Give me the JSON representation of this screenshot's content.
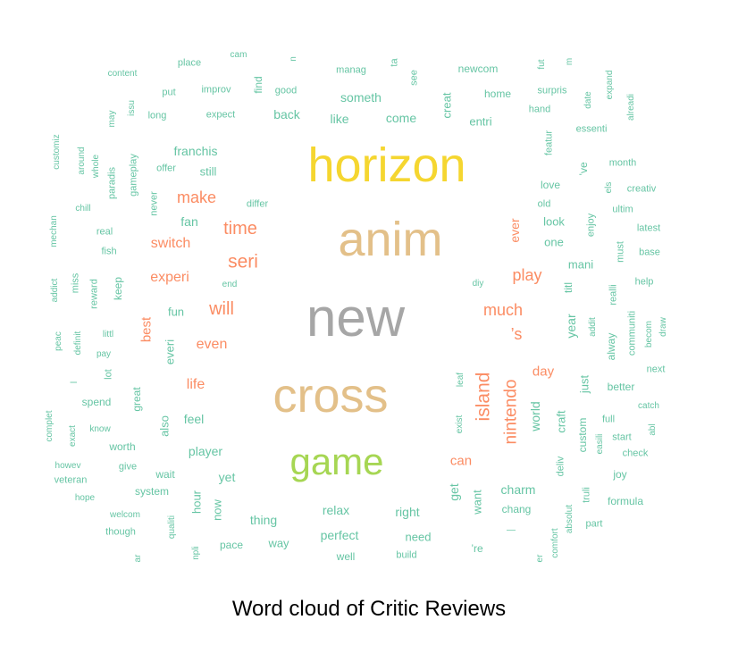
{
  "caption": "Word cloud of Critic Reviews",
  "colors": {
    "yellow": "#f5d630",
    "tan": "#e3c089",
    "gray": "#a6a6a6",
    "green": "#a6d653",
    "orange": "#fb8c63",
    "teal": "#66c5a4"
  },
  "words": [
    {
      "t": "horizon",
      "c": "yellow"
    },
    {
      "t": "anim",
      "c": "tan"
    },
    {
      "t": "new",
      "c": "gray"
    },
    {
      "t": "cross",
      "c": "tan"
    },
    {
      "t": "game",
      "c": "green"
    },
    {
      "t": "island",
      "c": "orange"
    },
    {
      "t": "nintendo",
      "c": "orange"
    },
    {
      "t": "seri",
      "c": "orange"
    },
    {
      "t": "time",
      "c": "orange"
    },
    {
      "t": "will",
      "c": "orange"
    },
    {
      "t": "make",
      "c": "orange"
    },
    {
      "t": "play",
      "c": "orange"
    },
    {
      "t": "much",
      "c": "orange"
    },
    {
      "t": "’s",
      "c": "orange"
    },
    {
      "t": "switch",
      "c": "orange"
    },
    {
      "t": "experi",
      "c": "orange"
    },
    {
      "t": "even",
      "c": "orange"
    },
    {
      "t": "life",
      "c": "orange"
    },
    {
      "t": "best",
      "c": "orange"
    },
    {
      "t": "day",
      "c": "orange"
    },
    {
      "t": "can",
      "c": "orange"
    },
    {
      "t": "ever",
      "c": "orange"
    },
    {
      "t": "world",
      "c": "teal"
    },
    {
      "t": "franchis",
      "c": "teal"
    },
    {
      "t": "still",
      "c": "teal"
    },
    {
      "t": "fan",
      "c": "teal"
    },
    {
      "t": "fun",
      "c": "teal"
    },
    {
      "t": "feel",
      "c": "teal"
    },
    {
      "t": "player",
      "c": "teal"
    },
    {
      "t": "yet",
      "c": "teal"
    },
    {
      "t": "hour",
      "c": "teal"
    },
    {
      "t": "now",
      "c": "teal"
    },
    {
      "t": "thing",
      "c": "teal"
    },
    {
      "t": "way",
      "c": "teal"
    },
    {
      "t": "relax",
      "c": "teal"
    },
    {
      "t": "perfect",
      "c": "teal"
    },
    {
      "t": "right",
      "c": "teal"
    },
    {
      "t": "need",
      "c": "teal"
    },
    {
      "t": "get",
      "c": "teal"
    },
    {
      "t": "want",
      "c": "teal"
    },
    {
      "t": "charm",
      "c": "teal"
    },
    {
      "t": "chang",
      "c": "teal"
    },
    {
      "t": "someth",
      "c": "teal"
    },
    {
      "t": "like",
      "c": "teal"
    },
    {
      "t": "come",
      "c": "teal"
    },
    {
      "t": "back",
      "c": "teal"
    },
    {
      "t": "creat",
      "c": "teal"
    },
    {
      "t": "entri",
      "c": "teal"
    },
    {
      "t": "look",
      "c": "teal"
    },
    {
      "t": "one",
      "c": "teal"
    },
    {
      "t": "mani",
      "c": "teal"
    },
    {
      "t": "love",
      "c": "teal"
    },
    {
      "t": "year",
      "c": "teal"
    },
    {
      "t": "titl",
      "c": "teal"
    },
    {
      "t": "just",
      "c": "teal"
    },
    {
      "t": "craft",
      "c": "teal"
    },
    {
      "t": "everi",
      "c": "teal"
    },
    {
      "t": "also",
      "c": "teal"
    },
    {
      "t": "great",
      "c": "teal"
    },
    {
      "t": "keep",
      "c": "teal"
    },
    {
      "t": "never",
      "c": "teal"
    },
    {
      "t": "gameplay",
      "c": "teal"
    },
    {
      "t": "paradis",
      "c": "teal"
    },
    {
      "t": "offer",
      "c": "teal"
    },
    {
      "t": "real",
      "c": "teal"
    },
    {
      "t": "fish",
      "c": "teal"
    },
    {
      "t": "chill",
      "c": "teal"
    },
    {
      "t": "whole",
      "c": "teal"
    },
    {
      "t": "around",
      "c": "teal"
    },
    {
      "t": "customiz",
      "c": "teal"
    },
    {
      "t": "mechan",
      "c": "teal"
    },
    {
      "t": "miss",
      "c": "teal"
    },
    {
      "t": "reward",
      "c": "teal"
    },
    {
      "t": "addict",
      "c": "teal"
    },
    {
      "t": "peac",
      "c": "teal"
    },
    {
      "t": "definit",
      "c": "teal"
    },
    {
      "t": "littl",
      "c": "teal"
    },
    {
      "t": "pay",
      "c": "teal"
    },
    {
      "t": "lot",
      "c": "teal"
    },
    {
      "t": "spend",
      "c": "teal"
    },
    {
      "t": "know",
      "c": "teal"
    },
    {
      "t": "exact",
      "c": "teal"
    },
    {
      "t": "complet",
      "c": "teal"
    },
    {
      "t": "worth",
      "c": "teal"
    },
    {
      "t": "howev",
      "c": "teal"
    },
    {
      "t": "give",
      "c": "teal"
    },
    {
      "t": "veteran",
      "c": "teal"
    },
    {
      "t": "wait",
      "c": "teal"
    },
    {
      "t": "hope",
      "c": "teal"
    },
    {
      "t": "system",
      "c": "teal"
    },
    {
      "t": "welcom",
      "c": "teal"
    },
    {
      "t": "though",
      "c": "teal"
    },
    {
      "t": "qualiti",
      "c": "teal"
    },
    {
      "t": "pace",
      "c": "teal"
    },
    {
      "t": "well",
      "c": "teal"
    },
    {
      "t": "build",
      "c": "teal"
    },
    {
      "t": "’re",
      "c": "teal"
    },
    {
      "t": "content",
      "c": "teal"
    },
    {
      "t": "place",
      "c": "teal"
    },
    {
      "t": "put",
      "c": "teal"
    },
    {
      "t": "improv",
      "c": "teal"
    },
    {
      "t": "find",
      "c": "teal"
    },
    {
      "t": "good",
      "c": "teal"
    },
    {
      "t": "long",
      "c": "teal"
    },
    {
      "t": "expect",
      "c": "teal"
    },
    {
      "t": "may",
      "c": "teal"
    },
    {
      "t": "issu",
      "c": "teal"
    },
    {
      "t": "manag",
      "c": "teal"
    },
    {
      "t": "ta",
      "c": "teal"
    },
    {
      "t": "see",
      "c": "teal"
    },
    {
      "t": "newcom",
      "c": "teal"
    },
    {
      "t": "home",
      "c": "teal"
    },
    {
      "t": "fut",
      "c": "teal"
    },
    {
      "t": "m",
      "c": "teal"
    },
    {
      "t": "surpris",
      "c": "teal"
    },
    {
      "t": "hand",
      "c": "teal"
    },
    {
      "t": "date",
      "c": "teal"
    },
    {
      "t": "expand",
      "c": "teal"
    },
    {
      "t": "alreadi",
      "c": "teal"
    },
    {
      "t": "essenti",
      "c": "teal"
    },
    {
      "t": "featur",
      "c": "teal"
    },
    {
      "t": "’ve",
      "c": "teal"
    },
    {
      "t": "month",
      "c": "teal"
    },
    {
      "t": "els",
      "c": "teal"
    },
    {
      "t": "creativ",
      "c": "teal"
    },
    {
      "t": "old",
      "c": "teal"
    },
    {
      "t": "enjoy",
      "c": "teal"
    },
    {
      "t": "ultim",
      "c": "teal"
    },
    {
      "t": "latest",
      "c": "teal"
    },
    {
      "t": "must",
      "c": "teal"
    },
    {
      "t": "base",
      "c": "teal"
    },
    {
      "t": "help",
      "c": "teal"
    },
    {
      "t": "realli",
      "c": "teal"
    },
    {
      "t": "addit",
      "c": "teal"
    },
    {
      "t": "communiti",
      "c": "teal"
    },
    {
      "t": "becom",
      "c": "teal"
    },
    {
      "t": "draw",
      "c": "teal"
    },
    {
      "t": "alway",
      "c": "teal"
    },
    {
      "t": "next",
      "c": "teal"
    },
    {
      "t": "better",
      "c": "teal"
    },
    {
      "t": "catch",
      "c": "teal"
    },
    {
      "t": "abl",
      "c": "teal"
    },
    {
      "t": "full",
      "c": "teal"
    },
    {
      "t": "start",
      "c": "teal"
    },
    {
      "t": "custom",
      "c": "teal"
    },
    {
      "t": "easili",
      "c": "teal"
    },
    {
      "t": "check",
      "c": "teal"
    },
    {
      "t": "deliv",
      "c": "teal"
    },
    {
      "t": "joy",
      "c": "teal"
    },
    {
      "t": "truli",
      "c": "teal"
    },
    {
      "t": "formula",
      "c": "teal"
    },
    {
      "t": "absolut",
      "c": "teal"
    },
    {
      "t": "part",
      "c": "teal"
    },
    {
      "t": "comfort",
      "c": "teal"
    },
    {
      "t": "differ",
      "c": "teal"
    },
    {
      "t": "end",
      "c": "teal"
    },
    {
      "t": "diy",
      "c": "teal"
    },
    {
      "t": "leaf",
      "c": "teal"
    },
    {
      "t": "exist",
      "c": "teal"
    },
    {
      "t": "npli",
      "c": "teal"
    },
    {
      "t": "er",
      "c": "teal"
    },
    {
      "t": "ar",
      "c": "teal"
    },
    {
      "t": "n",
      "c": "teal"
    },
    {
      "t": "l",
      "c": "teal"
    },
    {
      "t": "—",
      "c": "teal"
    },
    {
      "t": "cam",
      "c": "teal"
    }
  ]
}
